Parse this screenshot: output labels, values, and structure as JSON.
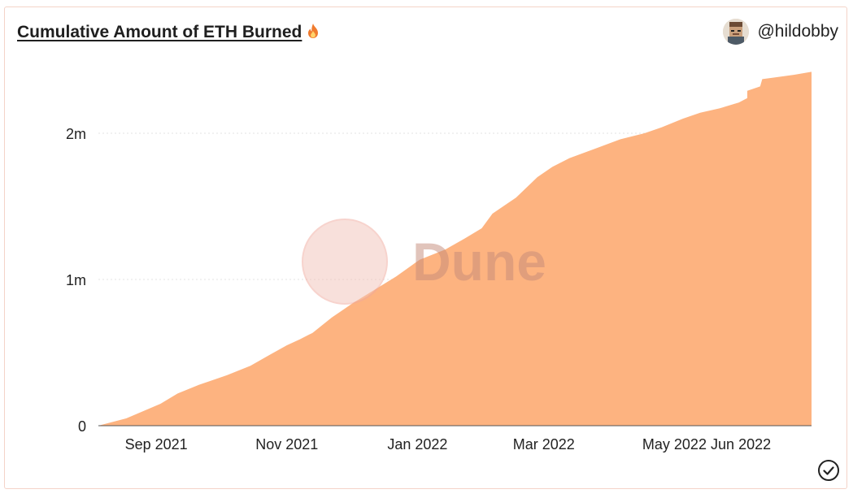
{
  "header": {
    "title": "Cumulative Amount of ETH Burned",
    "title_icon": "fire-icon",
    "author": "@hildobby",
    "author_avatar_icon": "pixel-avatar-icon"
  },
  "watermark": {
    "text": "Dune",
    "logo_icon": "dune-logo-icon"
  },
  "footer": {
    "status_icon": "check-circle-icon"
  },
  "colors": {
    "area_fill": "#fdb380",
    "grid": "#e3e3e3",
    "axis": "#555555",
    "text": "#222222",
    "watermark": "#c58a7a",
    "card_border": "#f4d3c8"
  },
  "chart_data": {
    "type": "area",
    "title": "Cumulative Amount of ETH Burned",
    "xlabel": "",
    "ylabel": "",
    "ylim": [
      0,
      2400000
    ],
    "yticks": [
      {
        "value": 0,
        "label": "0"
      },
      {
        "value": 1000000,
        "label": "1m"
      },
      {
        "value": 2000000,
        "label": "2m"
      }
    ],
    "xticks": [
      {
        "value": "2021-09-01",
        "label": "Sep 2021"
      },
      {
        "value": "2021-11-01",
        "label": "Nov 2021"
      },
      {
        "value": "2022-01-01",
        "label": "Jan 2022"
      },
      {
        "value": "2022-03-01",
        "label": "Mar 2022"
      },
      {
        "value": "2022-05-01",
        "label": "May 2022"
      },
      {
        "value": "2022-06-01",
        "label": "Jun 2022"
      }
    ],
    "grid": true,
    "legend": "none",
    "series": [
      {
        "points": [
          {
            "x": "2021-08-05",
            "y": 0
          },
          {
            "x": "2021-08-18",
            "y": 50000
          },
          {
            "x": "2021-08-22",
            "y": 75000
          },
          {
            "x": "2021-09-03",
            "y": 150000
          },
          {
            "x": "2021-09-11",
            "y": 220000
          },
          {
            "x": "2021-09-21",
            "y": 280000
          },
          {
            "x": "2021-10-04",
            "y": 345000
          },
          {
            "x": "2021-10-15",
            "y": 410000
          },
          {
            "x": "2021-10-24",
            "y": 485000
          },
          {
            "x": "2021-11-01",
            "y": 550000
          },
          {
            "x": "2021-11-07",
            "y": 590000
          },
          {
            "x": "2021-11-13",
            "y": 635000
          },
          {
            "x": "2021-11-22",
            "y": 740000
          },
          {
            "x": "2021-12-02",
            "y": 840000
          },
          {
            "x": "2021-12-12",
            "y": 930000
          },
          {
            "x": "2021-12-22",
            "y": 1020000
          },
          {
            "x": "2022-01-02",
            "y": 1135000
          },
          {
            "x": "2022-01-14",
            "y": 1205000
          },
          {
            "x": "2022-01-23",
            "y": 1280000
          },
          {
            "x": "2022-01-31",
            "y": 1350000
          },
          {
            "x": "2022-02-05",
            "y": 1450000
          },
          {
            "x": "2022-02-16",
            "y": 1560000
          },
          {
            "x": "2022-02-26",
            "y": 1700000
          },
          {
            "x": "2022-03-05",
            "y": 1770000
          },
          {
            "x": "2022-03-13",
            "y": 1830000
          },
          {
            "x": "2022-03-26",
            "y": 1900000
          },
          {
            "x": "2022-04-06",
            "y": 1960000
          },
          {
            "x": "2022-04-17",
            "y": 2000000
          },
          {
            "x": "2022-04-25",
            "y": 2040000
          },
          {
            "x": "2022-05-05",
            "y": 2100000
          },
          {
            "x": "2022-05-13",
            "y": 2140000
          },
          {
            "x": "2022-05-22",
            "y": 2170000
          },
          {
            "x": "2022-05-31",
            "y": 2210000
          },
          {
            "x": "2022-06-04",
            "y": 2240000
          },
          {
            "x": "2022-06-04",
            "y": 2290000
          },
          {
            "x": "2022-06-10",
            "y": 2320000
          },
          {
            "x": "2022-06-11",
            "y": 2370000
          },
          {
            "x": "2022-06-16",
            "y": 2380000
          },
          {
            "x": "2022-06-26",
            "y": 2400000
          },
          {
            "x": "2022-07-04",
            "y": 2420000
          }
        ]
      }
    ]
  }
}
